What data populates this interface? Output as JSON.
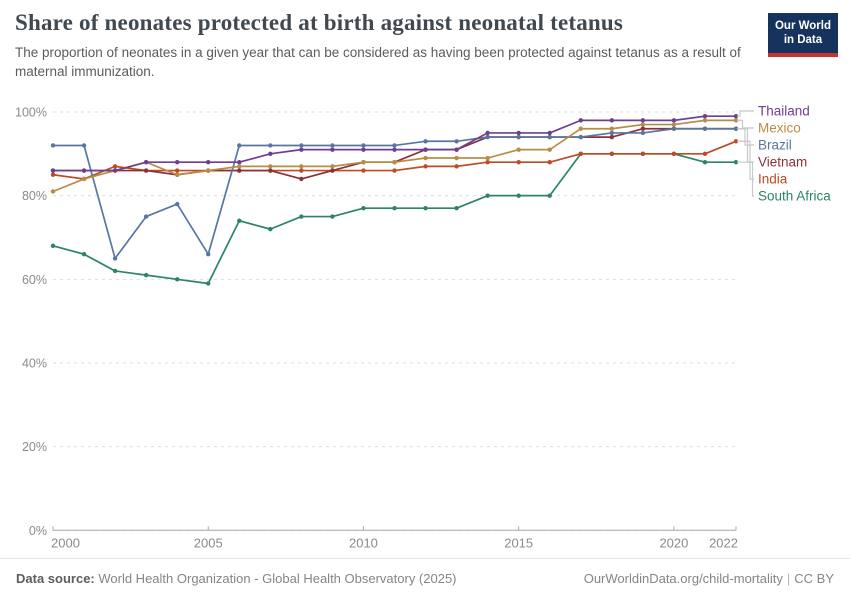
{
  "header": {
    "title": "Share of neonates protected at birth against neonatal tetanus",
    "subtitle": "The proportion of neonates in a given year that can be considered as having been protected against tetanus as a result of maternal immunization."
  },
  "logo": {
    "line1": "Our World",
    "line2": "in Data"
  },
  "footer": {
    "datasource_label": "Data source:",
    "datasource_text": " World Health Organization - Global Health Observatory (2025)",
    "link": "OurWorldinData.org/child-mortality",
    "separator": "|",
    "license": "CC BY"
  },
  "chart_data": {
    "type": "line",
    "title": "Share of neonates protected at birth against neonatal tetanus",
    "x": [
      2000,
      2001,
      2002,
      2003,
      2004,
      2005,
      2006,
      2007,
      2008,
      2009,
      2010,
      2011,
      2012,
      2013,
      2014,
      2015,
      2016,
      2017,
      2018,
      2019,
      2020,
      2021,
      2022
    ],
    "x_ticks": [
      2000,
      2005,
      2010,
      2015,
      2020,
      2022
    ],
    "y_ticks": [
      0,
      20,
      40,
      60,
      80,
      100
    ],
    "y_unit": "%",
    "ylim": [
      0,
      100
    ],
    "xlim": [
      2000,
      2022
    ],
    "grid": "horizontal-dashed",
    "legend_position": "right-of-plot",
    "series": [
      {
        "name": "Thailand",
        "color": "#6d3e91",
        "values": [
          86,
          86,
          86,
          88,
          88,
          88,
          88,
          90,
          91,
          91,
          91,
          91,
          91,
          91,
          95,
          95,
          95,
          98,
          98,
          98,
          98,
          99,
          99
        ]
      },
      {
        "name": "Mexico",
        "color": "#b98c46",
        "values": [
          81,
          84,
          86,
          88,
          85,
          86,
          87,
          87,
          87,
          87,
          88,
          88,
          89,
          89,
          89,
          91,
          91,
          96,
          96,
          97,
          97,
          98,
          98
        ]
      },
      {
        "name": "Brazil",
        "color": "#5876a2",
        "values": [
          92,
          92,
          65,
          75,
          78,
          66,
          92,
          92,
          92,
          92,
          92,
          92,
          93,
          93,
          94,
          94,
          94,
          94,
          95,
          95,
          96,
          96,
          96
        ]
      },
      {
        "name": "Vietnam",
        "color": "#8c3039",
        "values": [
          86,
          86,
          86,
          86,
          85,
          86,
          86,
          86,
          84,
          86,
          88,
          88,
          91,
          91,
          94,
          94,
          94,
          94,
          94,
          96,
          96,
          96,
          96
        ]
      },
      {
        "name": "India",
        "color": "#bf4a26",
        "values": [
          85,
          84,
          87,
          86,
          86,
          86,
          86,
          86,
          86,
          86,
          86,
          86,
          87,
          87,
          88,
          88,
          88,
          90,
          90,
          90,
          90,
          90,
          93
        ]
      },
      {
        "name": "South Africa",
        "color": "#2c8465",
        "values": [
          68,
          66,
          62,
          61,
          60,
          59,
          74,
          72,
          75,
          75,
          77,
          77,
          77,
          77,
          80,
          80,
          80,
          90,
          90,
          90,
          90,
          88,
          88
        ]
      }
    ],
    "style": {
      "grid_color": "#dedede",
      "axis_color": "#a8a8a8",
      "tick_label_color": "#8b8b8b",
      "connector_color": "#c8c8c8"
    }
  }
}
